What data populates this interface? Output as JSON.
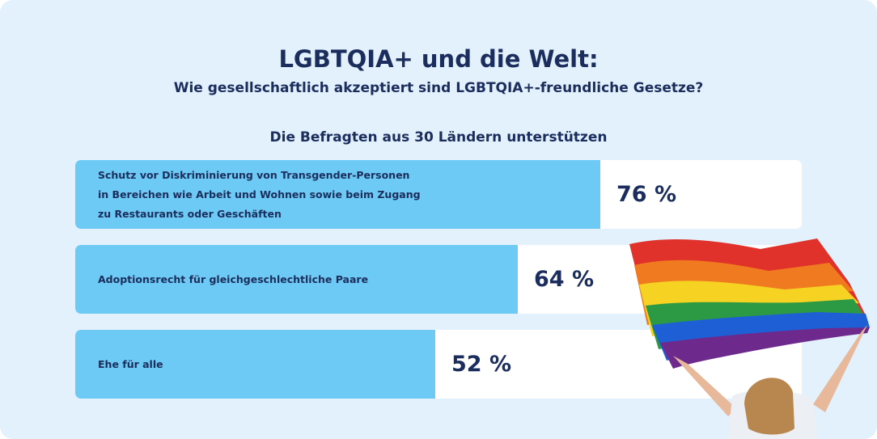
{
  "title": "LGBTQIA+ und die Welt:",
  "subtitle": "Wie gesellschaftlich akzeptiert sind LGBTQIA+-freundliche Gesetze?",
  "chart_data": {
    "type": "bar",
    "orientation": "horizontal",
    "title": "Die Befragten aus 30 Ländern unterstützen",
    "categories": [
      "Schutz vor Diskriminierung von Transgender-Personen in Bereichen wie Arbeit und Wohnen sowie beim Zugang zu Restaurants oder Geschäften",
      "Adoptionsrecht für gleichgeschlechtliche Paare",
      "Ehe für alle"
    ],
    "values": [
      76,
      64,
      52
    ],
    "value_labels": [
      "76 %",
      "64 %",
      "52 %"
    ],
    "unit": "%",
    "xlim": [
      0,
      100
    ],
    "bar_color": "#6dcaf4",
    "track_color": "#ffffff"
  },
  "colors": {
    "background": "#e2f1fc",
    "text": "#1b2d5c"
  }
}
